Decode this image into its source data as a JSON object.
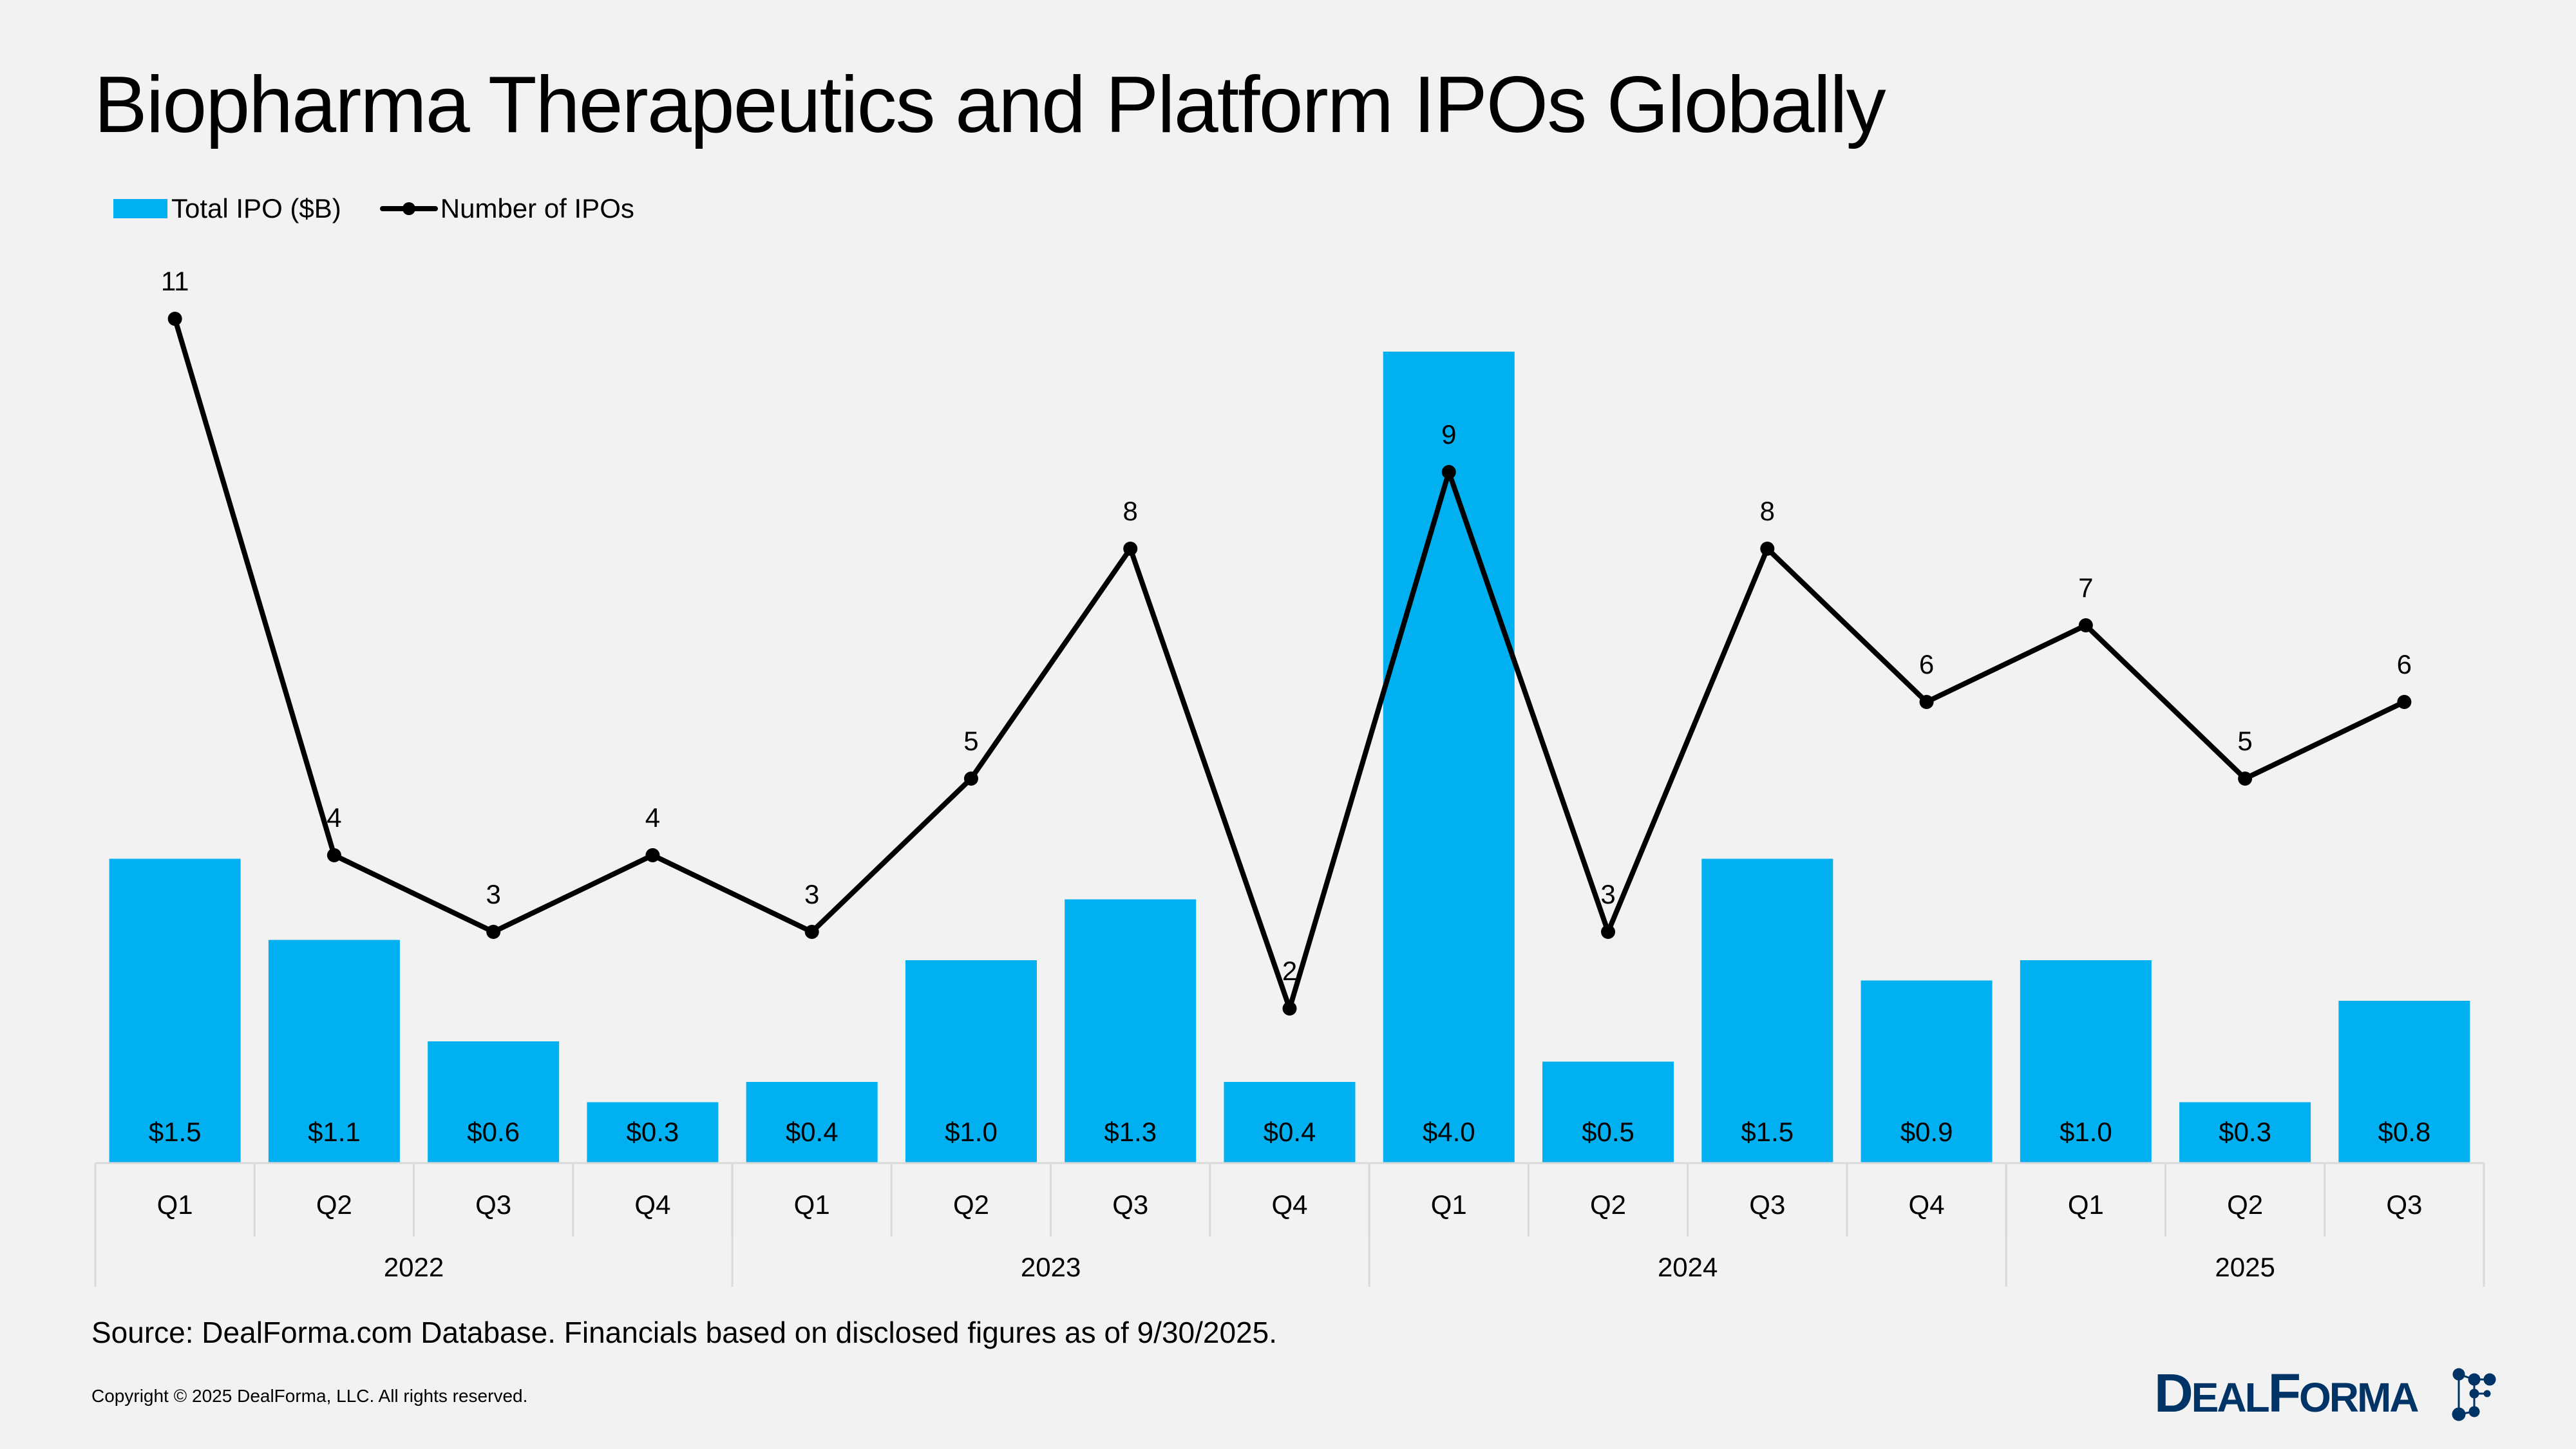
{
  "title": "Biopharma Therapeutics and Platform IPOs Globally",
  "legend": {
    "bar_label": "Total IPO ($B)",
    "line_label": "Number of IPOs"
  },
  "source": "Source: DealForma.com Database. Financials based on disclosed figures as of 9/30/2025.",
  "copyright": "Copyright © 2025 DealForma, LLC. All rights reserved.",
  "logo_text": "DealForma",
  "colors": {
    "bar": "#00b0f0",
    "line": "#000000",
    "logo": "#003366",
    "grid": "#d9d9d9"
  },
  "chart_data": {
    "type": "bar+line",
    "title": "Biopharma Therapeutics and Platform IPOs Globally",
    "categories": [
      "Q1",
      "Q2",
      "Q3",
      "Q4",
      "Q1",
      "Q2",
      "Q3",
      "Q4",
      "Q1",
      "Q2",
      "Q3",
      "Q4",
      "Q1",
      "Q2",
      "Q3"
    ],
    "groups": [
      {
        "label": "2022",
        "count": 4
      },
      {
        "label": "2023",
        "count": 4
      },
      {
        "label": "2024",
        "count": 4
      },
      {
        "label": "2025",
        "count": 3
      }
    ],
    "series": [
      {
        "name": "Total IPO ($B)",
        "type": "bar",
        "values": [
          1.5,
          1.1,
          0.6,
          0.3,
          0.4,
          1.0,
          1.3,
          0.4,
          4.0,
          0.5,
          1.5,
          0.9,
          1.0,
          0.3,
          0.8
        ],
        "labels": [
          "$1.5",
          "$1.1",
          "$0.6",
          "$0.3",
          "$0.4",
          "$1.0",
          "$1.3",
          "$0.4",
          "$4.0",
          "$0.5",
          "$1.5",
          "$0.9",
          "$1.0",
          "$0.3",
          "$0.8"
        ]
      },
      {
        "name": "Number of IPOs",
        "type": "line",
        "values": [
          11,
          4,
          3,
          4,
          3,
          5,
          8,
          2,
          9,
          3,
          8,
          6,
          7,
          5,
          6
        ]
      }
    ],
    "legend_position": "top-left",
    "grid": false
  }
}
